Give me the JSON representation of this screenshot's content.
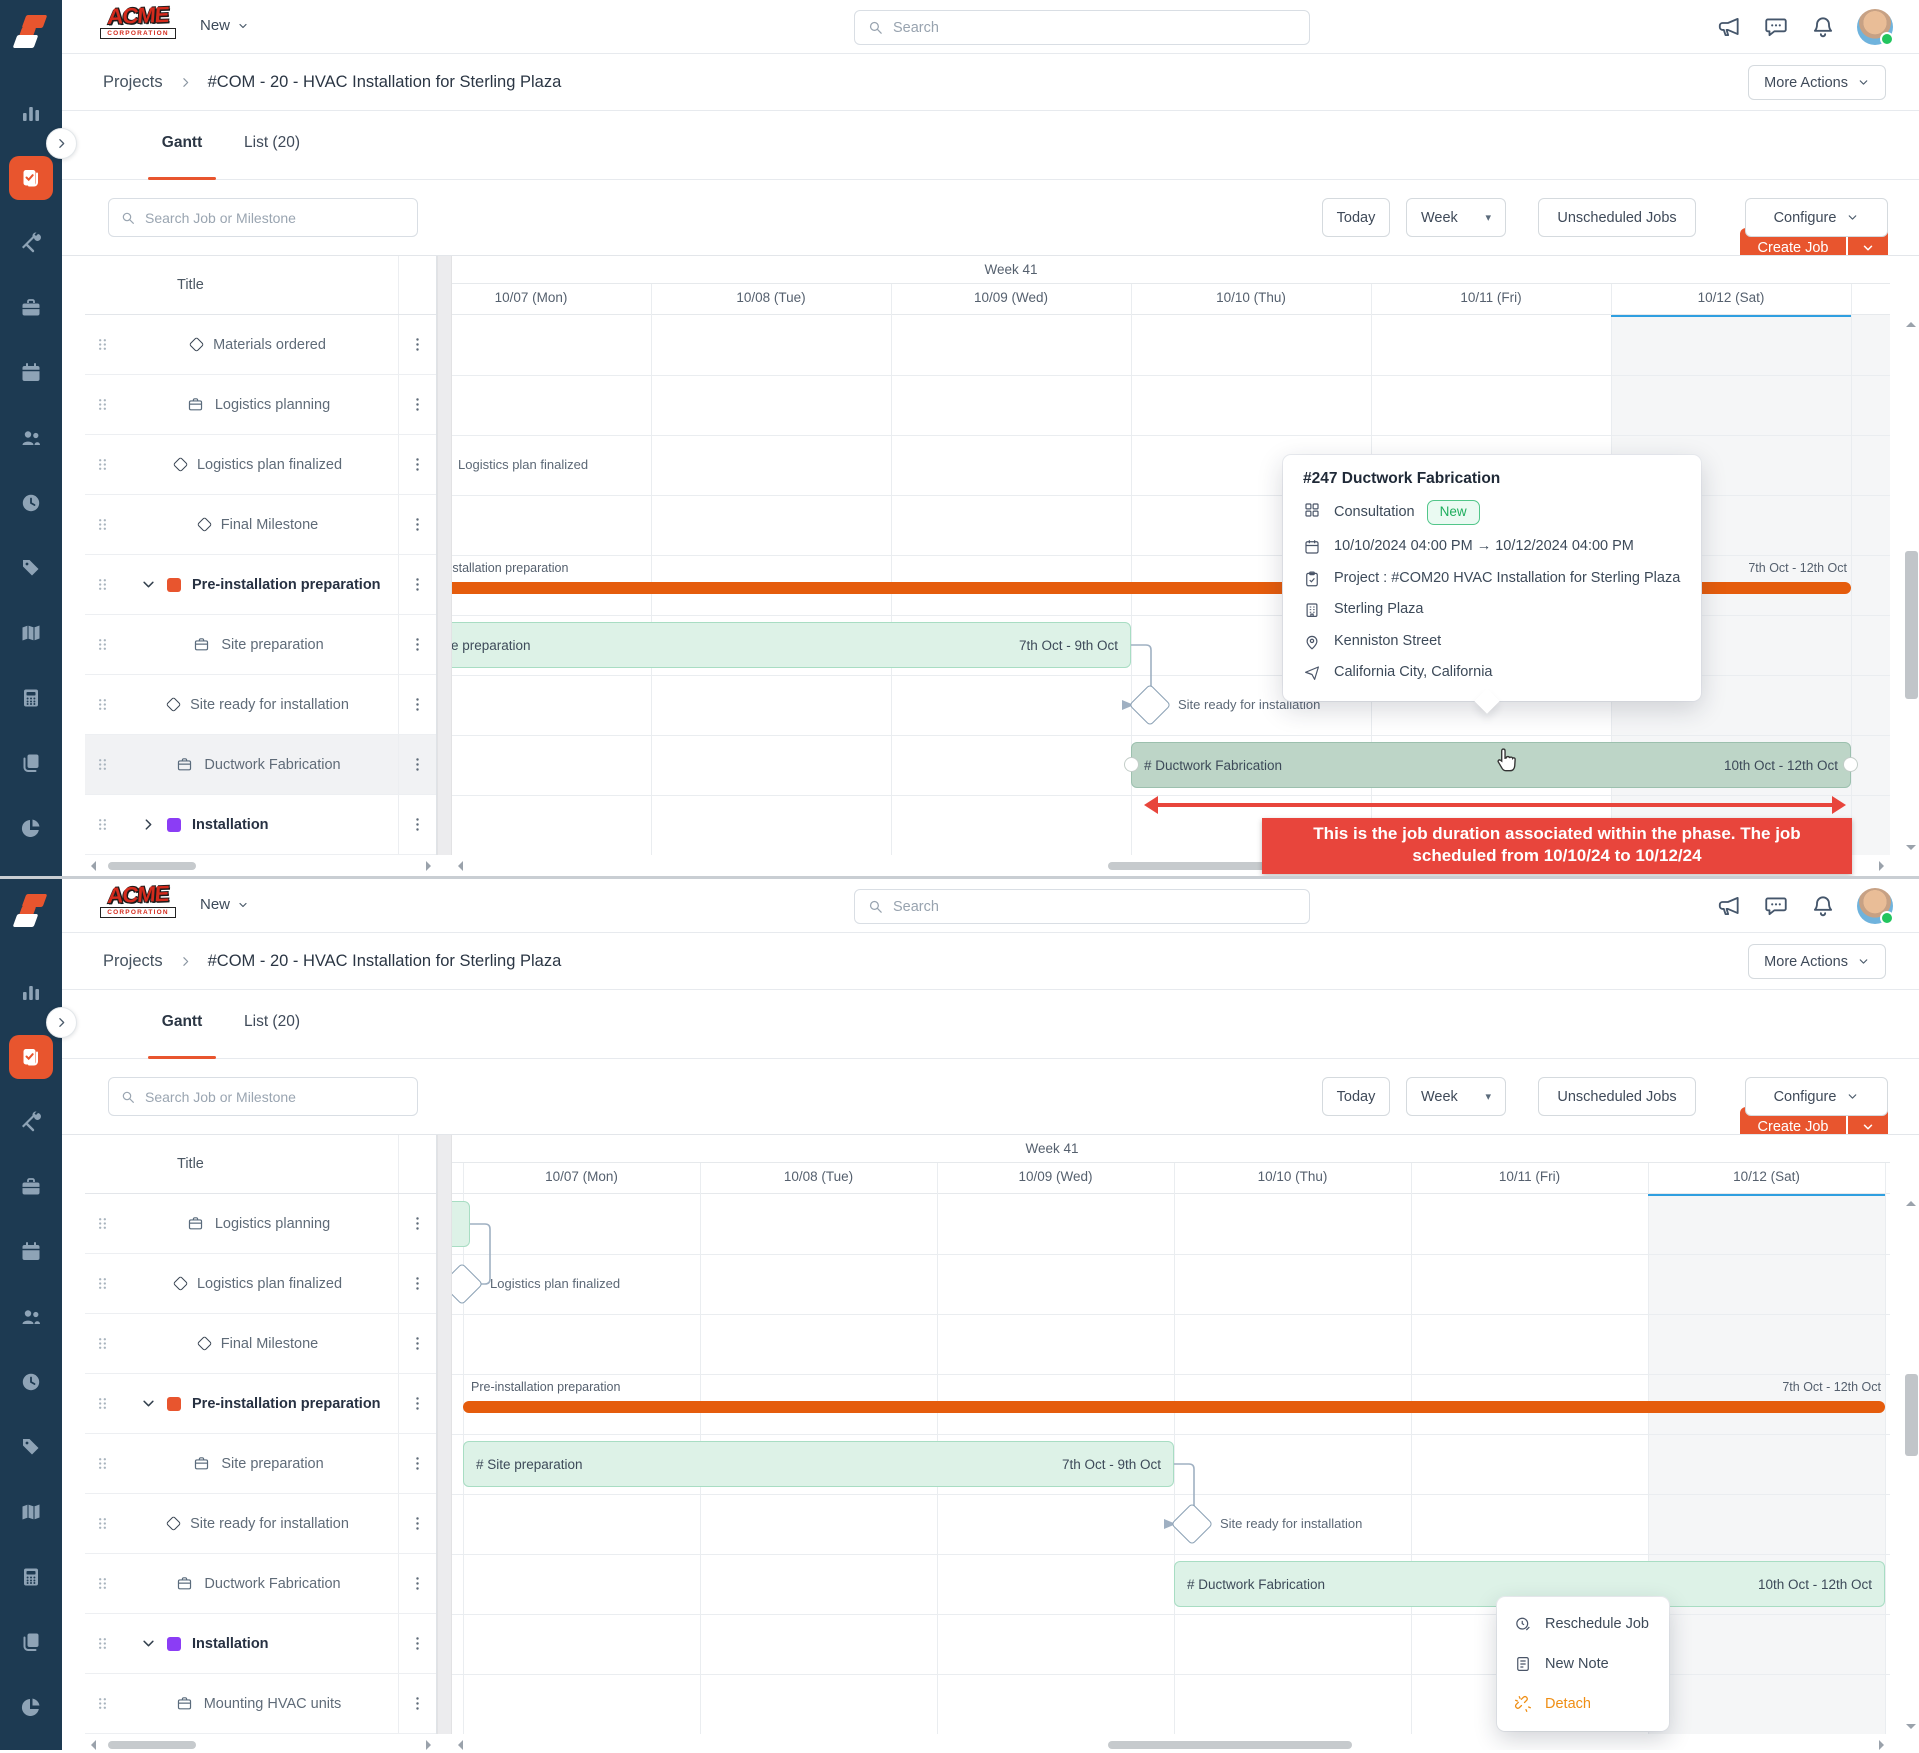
{
  "colors": {
    "accent_orange": "#e8552e",
    "phase_orange": "#e55c0c",
    "phase_purple": "#8b3df5",
    "sidebar_navy": "#1d3a52",
    "job_green_fill": "#ddf2e7",
    "job_green_border": "#a8ddc3",
    "job_selected_fill": "#bdd5c7",
    "saturday_highlight": "#f5f6f7",
    "saturday_line_blue": "#2f9fe0",
    "annotation_red": "#e8453c",
    "badge_green": "#1fae5e",
    "detach_orange": "#ef8e14"
  },
  "sidebar": {
    "items": [
      {
        "name": "analytics"
      },
      {
        "name": "jobs",
        "active": true
      },
      {
        "name": "tools"
      },
      {
        "name": "briefcase"
      },
      {
        "name": "calendar"
      },
      {
        "name": "team"
      },
      {
        "name": "time"
      },
      {
        "name": "tags"
      },
      {
        "name": "map"
      },
      {
        "name": "calculator"
      },
      {
        "name": "documents"
      },
      {
        "name": "reports"
      }
    ]
  },
  "header": {
    "brand_line1": "ACME",
    "brand_line2": "CORPORATION",
    "nav_new": "New",
    "search_placeholder": "Search"
  },
  "breadcrumb": {
    "root": "Projects",
    "current": "#COM - 20 - HVAC Installation for Sterling Plaza",
    "more_actions": "More Actions"
  },
  "tabs": {
    "gantt": "Gantt",
    "list": "List (20)",
    "create_job": "Create Job"
  },
  "toolbar": {
    "search_placeholder": "Search Job or Milestone",
    "today": "Today",
    "view_mode": "Week",
    "unscheduled": "Unscheduled Jobs",
    "configure": "Configure"
  },
  "gantt": {
    "title_col": "Title",
    "week_label": "Week 41",
    "days": [
      "10/07 (Mon)",
      "10/08 (Tue)",
      "10/09 (Wed)",
      "10/10 (Thu)",
      "10/11 (Fri)",
      "10/12 (Sat)"
    ]
  },
  "panels": [
    {
      "rows": [
        {
          "label": "Materials ordered",
          "type": "milestone"
        },
        {
          "label": "Logistics planning",
          "type": "job"
        },
        {
          "label": "Logistics plan finalized",
          "type": "milestone"
        },
        {
          "label": "Final Milestone",
          "type": "milestone"
        },
        {
          "label": "Pre-installation preparation",
          "type": "phase",
          "color": "#e8552e",
          "expanded": true
        },
        {
          "label": "Site preparation",
          "type": "job"
        },
        {
          "label": "Site ready for installation",
          "type": "milestone"
        },
        {
          "label": "Ductwork Fabrication",
          "type": "job",
          "highlight": true
        },
        {
          "label": "Installation",
          "type": "phase",
          "color": "#8b3df5",
          "expanded": false
        }
      ],
      "schedule": {
        "phase": {
          "label": "Pre-installation preparation",
          "range": "7th Oct - 12th Oct"
        },
        "site_prep": {
          "label": "# Site preparation",
          "range": "7th Oct - 9th Oct"
        },
        "milestone_label_only": "Logistics plan finalized",
        "site_ready": "Site ready for installation",
        "ductwork": {
          "label": "# Ductwork Fabrication",
          "range": "10th Oct - 12th Oct",
          "selected": true
        }
      }
    },
    {
      "rows": [
        {
          "label": "Logistics planning",
          "type": "job"
        },
        {
          "label": "Logistics plan finalized",
          "type": "milestone"
        },
        {
          "label": "Final Milestone",
          "type": "milestone"
        },
        {
          "label": "Pre-installation preparation",
          "type": "phase",
          "color": "#e8552e",
          "expanded": true
        },
        {
          "label": "Site preparation",
          "type": "job"
        },
        {
          "label": "Site ready for installation",
          "type": "milestone"
        },
        {
          "label": "Ductwork Fabrication",
          "type": "job"
        },
        {
          "label": "Installation",
          "type": "phase",
          "color": "#8b3df5",
          "expanded": true
        },
        {
          "label": "Mounting HVAC units",
          "type": "job"
        }
      ],
      "schedule": {
        "phase": {
          "label": "Pre-installation preparation",
          "range": "7th Oct - 12th Oct"
        },
        "site_prep": {
          "label": "# Site preparation",
          "range": "7th Oct - 9th Oct"
        },
        "logistics_finalized": "Logistics plan finalized",
        "site_ready": "Site ready for installation",
        "ductwork": {
          "label": "# Ductwork Fabrication",
          "range": "10th Oct - 12th Oct"
        }
      }
    }
  ],
  "tooltip": {
    "title": "#247 Ductwork Fabrication",
    "category": "Consultation",
    "status": "New",
    "date_range": "10/10/2024 04:00 PM → 10/12/2024 04:00 PM",
    "project": "Project : #COM20 HVAC Installation for Sterling Plaza",
    "property": "Sterling Plaza",
    "street": "Kenniston Street",
    "city": "California City, California"
  },
  "annotation": {
    "line1": "This is the job duration associated within the phase. The job",
    "line2": "scheduled from 10/10/24 to 10/12/24"
  },
  "context_menu": {
    "items": [
      {
        "label": "Reschedule Job"
      },
      {
        "label": "New Note"
      },
      {
        "label": "Detach"
      }
    ]
  }
}
